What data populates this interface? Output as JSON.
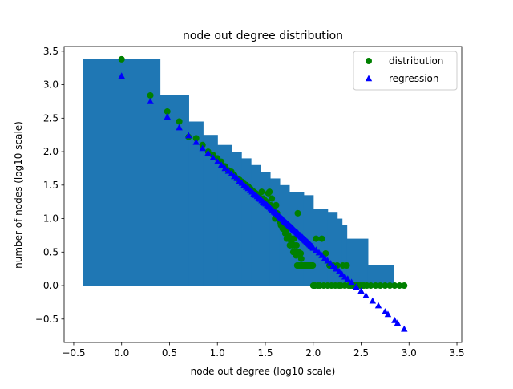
{
  "chart_data": {
    "type": "scatter",
    "title": "node out degree distribution",
    "xlabel": "node out degree (log10 scale)",
    "ylabel": "number of nodes (log10 scale)",
    "xlim": [
      -0.6,
      3.55
    ],
    "ylim": [
      -0.85,
      3.57
    ],
    "xticks": [
      "−0.5",
      "0.0",
      "0.5",
      "1.0",
      "1.5",
      "2.0",
      "2.5",
      "3.0",
      "3.5"
    ],
    "yticks": [
      "−0.5",
      "0.0",
      "0.5",
      "1.0",
      "1.5",
      "2.0",
      "2.5",
      "3.0",
      "3.5"
    ],
    "xtick_values": [
      -0.5,
      0.0,
      0.5,
      1.0,
      1.5,
      2.0,
      2.5,
      3.0,
      3.5
    ],
    "ytick_values": [
      -0.5,
      0.0,
      0.5,
      1.0,
      1.5,
      2.0,
      2.5,
      3.0,
      3.5
    ],
    "grid": false,
    "legend_position": "top-right",
    "histogram": {
      "color": "#1f77b4",
      "steps": [
        [
          -0.4,
          0.4,
          3.38
        ],
        [
          0.4,
          0.7,
          2.84
        ],
        [
          0.7,
          0.85,
          2.45
        ],
        [
          0.85,
          1.0,
          2.25
        ],
        [
          1.0,
          1.15,
          2.1
        ],
        [
          1.15,
          1.25,
          2.0
        ],
        [
          1.25,
          1.35,
          1.9
        ],
        [
          1.35,
          1.45,
          1.8
        ],
        [
          1.45,
          1.55,
          1.7
        ],
        [
          1.55,
          1.65,
          1.6
        ],
        [
          1.65,
          1.75,
          1.5
        ],
        [
          1.75,
          1.9,
          1.4
        ],
        [
          1.9,
          2.0,
          1.35
        ],
        [
          2.0,
          2.15,
          1.15
        ],
        [
          2.15,
          2.25,
          1.1
        ],
        [
          2.25,
          2.3,
          1.0
        ],
        [
          2.3,
          2.35,
          0.9
        ],
        [
          2.35,
          2.57,
          0.7
        ],
        [
          2.57,
          2.84,
          0.3
        ]
      ]
    },
    "series": [
      {
        "name": "distribution",
        "marker": "circle",
        "color": "#008000",
        "x": [
          0.0,
          0.3,
          0.477,
          0.602,
          0.699,
          0.778,
          0.845,
          0.903,
          0.954,
          1.0,
          1.041,
          1.079,
          1.114,
          1.146,
          1.176,
          1.204,
          1.23,
          1.255,
          1.279,
          1.301,
          1.322,
          1.342,
          1.362,
          1.38,
          1.398,
          1.415,
          1.431,
          1.447,
          1.462,
          1.477,
          1.491,
          1.505,
          1.519,
          1.531,
          1.544,
          1.556,
          1.568,
          1.58,
          1.591,
          1.602,
          1.613,
          1.623,
          1.633,
          1.643,
          1.653,
          1.663,
          1.672,
          1.681,
          1.69,
          1.699,
          1.708,
          1.716,
          1.724,
          1.732,
          1.74,
          1.748,
          1.756,
          1.763,
          1.771,
          1.778,
          1.785,
          1.792,
          1.799,
          1.806,
          1.813,
          1.82,
          1.826,
          1.833,
          1.839,
          1.845,
          1.851,
          1.857,
          1.863,
          1.869,
          1.875,
          1.881,
          1.886,
          1.892,
          1.898,
          1.903,
          1.908,
          1.914,
          1.919,
          1.924,
          1.929,
          1.934,
          1.94,
          1.945,
          1.949,
          1.954,
          1.959,
          1.964,
          1.968,
          1.973,
          1.978,
          1.982,
          1.987,
          1.991,
          1.996,
          2.0,
          2.01,
          2.02,
          2.03,
          2.05,
          2.07,
          2.09,
          2.11,
          2.13,
          2.15,
          2.17,
          2.19,
          2.21,
          2.23,
          2.25,
          2.27,
          2.29,
          2.31,
          2.33,
          2.35,
          2.37,
          2.39,
          2.41,
          2.43,
          2.45,
          2.47,
          2.49,
          2.51,
          2.53,
          2.56,
          2.6,
          2.65,
          2.7,
          2.75,
          2.8,
          2.85,
          2.9,
          2.95
        ],
        "y": [
          3.38,
          2.84,
          2.6,
          2.45,
          2.22,
          2.2,
          2.1,
          2.0,
          1.95,
          1.9,
          1.85,
          1.78,
          1.72,
          1.7,
          1.65,
          1.6,
          1.58,
          1.55,
          1.52,
          1.5,
          1.48,
          1.45,
          1.42,
          1.4,
          1.38,
          1.36,
          1.34,
          1.3,
          1.4,
          1.3,
          1.28,
          1.26,
          1.23,
          1.38,
          1.4,
          1.2,
          1.3,
          1.15,
          1.1,
          1.0,
          1.2,
          1.08,
          1.0,
          1.0,
          0.95,
          0.9,
          0.95,
          0.85,
          0.9,
          0.85,
          0.78,
          0.8,
          0.7,
          0.85,
          0.75,
          0.7,
          0.6,
          0.7,
          0.65,
          0.7,
          0.6,
          0.5,
          0.7,
          0.6,
          0.5,
          0.45,
          0.6,
          0.3,
          1.08,
          0.5,
          0.3,
          0.45,
          0.3,
          0.48,
          0.4,
          0.3,
          0.3,
          0.3,
          0.3,
          0.3,
          0.3,
          0.3,
          0.3,
          0.3,
          0.3,
          0.3,
          0.3,
          0.3,
          0.3,
          0.3,
          0.3,
          0.3,
          0.3,
          0.3,
          0.3,
          0.3,
          0.3,
          0.3,
          0.3,
          0.0,
          0.0,
          0.0,
          0.7,
          0.0,
          0.0,
          0.7,
          0.0,
          0.48,
          0.0,
          0.3,
          0.0,
          0.3,
          0.0,
          0.3,
          0.0,
          0.0,
          0.3,
          0.0,
          0.3,
          0.0,
          0.0,
          0.0,
          0.0,
          0.0,
          0.0,
          0.0,
          0.0,
          0.0,
          0.0,
          0.0,
          0.0,
          0.0,
          0.0,
          0.0,
          0.0,
          0.0,
          0.0
        ]
      },
      {
        "name": "regression",
        "marker": "triangle-up",
        "color": "#0000ff",
        "x": [
          0.0,
          0.3,
          0.477,
          0.602,
          0.699,
          0.778,
          0.845,
          0.903,
          0.954,
          1.0,
          1.041,
          1.079,
          1.114,
          1.146,
          1.176,
          1.204,
          1.23,
          1.255,
          1.279,
          1.301,
          1.322,
          1.342,
          1.362,
          1.38,
          1.398,
          1.415,
          1.431,
          1.447,
          1.462,
          1.477,
          1.491,
          1.505,
          1.519,
          1.531,
          1.544,
          1.556,
          1.568,
          1.58,
          1.591,
          1.602,
          1.613,
          1.623,
          1.633,
          1.643,
          1.653,
          1.663,
          1.672,
          1.681,
          1.69,
          1.699,
          1.708,
          1.716,
          1.724,
          1.732,
          1.74,
          1.748,
          1.756,
          1.763,
          1.771,
          1.778,
          1.785,
          1.792,
          1.799,
          1.806,
          1.813,
          1.82,
          1.826,
          1.833,
          1.839,
          1.845,
          1.851,
          1.857,
          1.863,
          1.869,
          1.875,
          1.881,
          1.886,
          1.892,
          1.898,
          1.903,
          1.908,
          1.914,
          1.919,
          1.924,
          1.929,
          1.934,
          1.94,
          1.945,
          1.949,
          1.954,
          1.959,
          1.964,
          1.968,
          1.973,
          1.978,
          1.982,
          1.987,
          1.991,
          1.996,
          2.0,
          2.03,
          2.06,
          2.09,
          2.12,
          2.15,
          2.18,
          2.21,
          2.24,
          2.27,
          2.3,
          2.33,
          2.36,
          2.4,
          2.45,
          2.5,
          2.55,
          2.62,
          2.68,
          2.75,
          2.78,
          2.85,
          2.88,
          2.95
        ],
        "y": [
          3.13,
          2.75,
          2.52,
          2.36,
          2.24,
          2.14,
          2.05,
          1.98,
          1.91,
          1.85,
          1.8,
          1.75,
          1.71,
          1.67,
          1.63,
          1.6,
          1.56,
          1.53,
          1.5,
          1.47,
          1.45,
          1.42,
          1.4,
          1.37,
          1.35,
          1.33,
          1.31,
          1.29,
          1.27,
          1.25,
          1.23,
          1.22,
          1.2,
          1.18,
          1.17,
          1.15,
          1.13,
          1.12,
          1.1,
          1.09,
          1.08,
          1.06,
          1.05,
          1.04,
          1.02,
          1.01,
          1.0,
          0.99,
          0.97,
          0.96,
          0.95,
          0.94,
          0.93,
          0.92,
          0.91,
          0.9,
          0.89,
          0.88,
          0.87,
          0.86,
          0.85,
          0.84,
          0.83,
          0.82,
          0.81,
          0.8,
          0.8,
          0.79,
          0.78,
          0.77,
          0.76,
          0.75,
          0.75,
          0.74,
          0.73,
          0.72,
          0.72,
          0.71,
          0.7,
          0.69,
          0.69,
          0.68,
          0.67,
          0.67,
          0.66,
          0.65,
          0.65,
          0.64,
          0.63,
          0.63,
          0.62,
          0.61,
          0.61,
          0.6,
          0.59,
          0.59,
          0.58,
          0.58,
          0.57,
          0.56,
          0.53,
          0.49,
          0.45,
          0.41,
          0.37,
          0.33,
          0.29,
          0.25,
          0.21,
          0.17,
          0.13,
          0.1,
          0.05,
          -0.02,
          -0.08,
          -0.15,
          -0.23,
          -0.3,
          -0.39,
          -0.43,
          -0.52,
          -0.56,
          -0.65
        ]
      }
    ]
  }
}
